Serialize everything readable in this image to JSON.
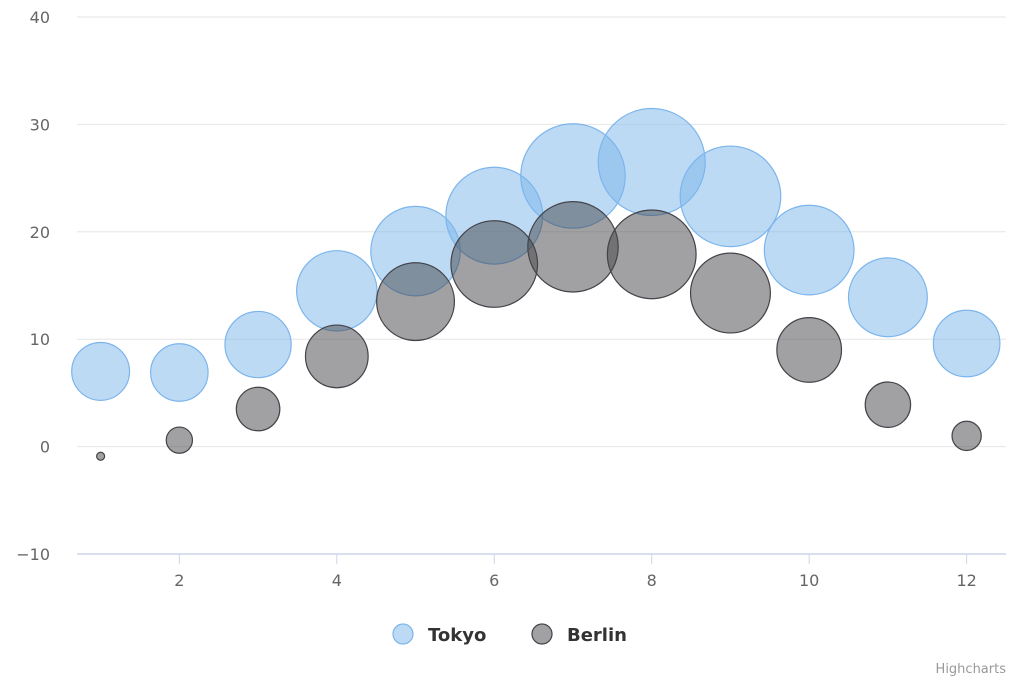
{
  "chart_data": {
    "type": "scatter",
    "subtype": "bubble",
    "title": "",
    "xlabel": "",
    "ylabel": "",
    "xlim": [
      0.7,
      12.5
    ],
    "ylim": [
      -10,
      40
    ],
    "x_ticks": [
      2,
      4,
      6,
      8,
      10,
      12
    ],
    "y_ticks": [
      -10,
      0,
      10,
      20,
      30,
      40
    ],
    "grid": true,
    "legend_position": "bottom-center",
    "series": [
      {
        "name": "Tokyo",
        "color": "#7cb5ec",
        "points": [
          {
            "x": 1,
            "y": 7.0,
            "z": 7.0
          },
          {
            "x": 2,
            "y": 6.9,
            "z": 6.9
          },
          {
            "x": 3,
            "y": 9.5,
            "z": 9.5
          },
          {
            "x": 4,
            "y": 14.5,
            "z": 14.5
          },
          {
            "x": 5,
            "y": 18.2,
            "z": 18.2
          },
          {
            "x": 6,
            "y": 21.5,
            "z": 21.5
          },
          {
            "x": 7,
            "y": 25.2,
            "z": 25.2
          },
          {
            "x": 8,
            "y": 26.5,
            "z": 26.5
          },
          {
            "x": 9,
            "y": 23.3,
            "z": 23.3
          },
          {
            "x": 10,
            "y": 18.3,
            "z": 18.3
          },
          {
            "x": 11,
            "y": 13.9,
            "z": 13.9
          },
          {
            "x": 12,
            "y": 9.6,
            "z": 9.6
          }
        ]
      },
      {
        "name": "Berlin",
        "color": "#434348",
        "points": [
          {
            "x": 1,
            "y": -0.9,
            "z": -0.9
          },
          {
            "x": 2,
            "y": 0.6,
            "z": 0.6
          },
          {
            "x": 3,
            "y": 3.5,
            "z": 3.5
          },
          {
            "x": 4,
            "y": 8.4,
            "z": 8.4
          },
          {
            "x": 5,
            "y": 13.5,
            "z": 13.5
          },
          {
            "x": 6,
            "y": 17.0,
            "z": 17.0
          },
          {
            "x": 7,
            "y": 18.6,
            "z": 18.6
          },
          {
            "x": 8,
            "y": 17.9,
            "z": 17.9
          },
          {
            "x": 9,
            "y": 14.3,
            "z": 14.3
          },
          {
            "x": 10,
            "y": 9.0,
            "z": 9.0
          },
          {
            "x": 11,
            "y": 3.9,
            "z": 3.9
          },
          {
            "x": 12,
            "y": 1.0,
            "z": 1.0
          }
        ]
      }
    ]
  },
  "credits": "Highcharts"
}
